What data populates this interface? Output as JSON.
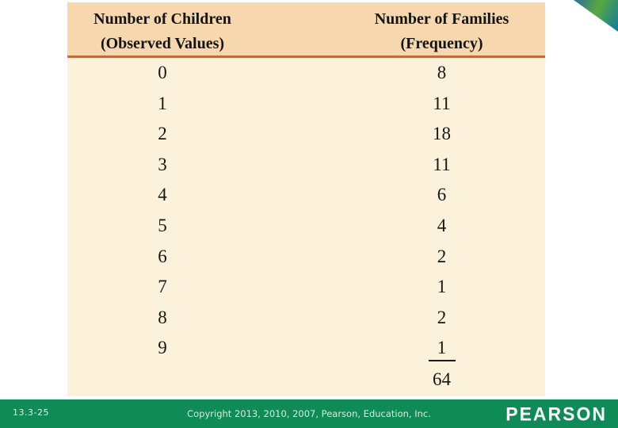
{
  "table": {
    "header": {
      "col1_line1": "Number of Children",
      "col1_line2": "(Observed Values)",
      "col2_line1": "Number of Families",
      "col2_line2": "(Frequency)"
    },
    "rows": [
      {
        "children": "0",
        "families": "8"
      },
      {
        "children": "1",
        "families": "11"
      },
      {
        "children": "2",
        "families": "18"
      },
      {
        "children": "3",
        "families": "11"
      },
      {
        "children": "4",
        "families": "6"
      },
      {
        "children": "5",
        "families": "4"
      },
      {
        "children": "6",
        "families": "2"
      },
      {
        "children": "7",
        "families": "1"
      },
      {
        "children": "8",
        "families": "2"
      },
      {
        "children": "9",
        "families": "1"
      }
    ],
    "total": "64"
  },
  "footer": {
    "slide_number": "13.3-25",
    "copyright": "Copyright 2013, 2010, 2007, Pearson, Education, Inc.",
    "logo": "PEARSON"
  },
  "colors": {
    "header_band": "#f6d7ae",
    "table_body": "#fcf1da",
    "header_rule": "#bf6b3a",
    "footer_bar": "#0e8b57",
    "ribbon_blue": "#2a6f9d",
    "ribbon_green": "#57a83f",
    "ribbon_teal": "#1179a0"
  },
  "chart_data": {
    "type": "table",
    "title": "",
    "columns": [
      "Number of Children (Observed Values)",
      "Number of Families (Frequency)"
    ],
    "x": [
      0,
      1,
      2,
      3,
      4,
      5,
      6,
      7,
      8,
      9
    ],
    "values": [
      8,
      11,
      18,
      11,
      6,
      4,
      2,
      1,
      2,
      1
    ],
    "total": 64
  }
}
